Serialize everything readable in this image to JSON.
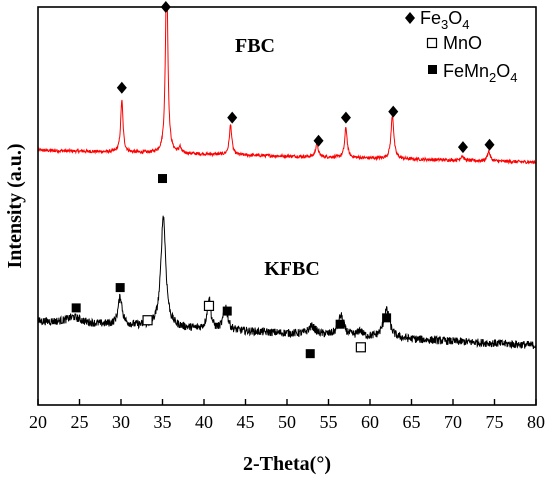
{
  "chart_data": {
    "type": "line",
    "xlabel": "2-Theta(°)",
    "ylabel": "Intensity (a.u.)",
    "xlim": [
      20,
      80
    ],
    "x_ticks": [
      "20",
      "25",
      "30",
      "35",
      "40",
      "45",
      "50",
      "55",
      "60",
      "65",
      "70",
      "75",
      "80"
    ],
    "grid": false,
    "legend_placement": "top-right",
    "legend": [
      {
        "marker": "diamond",
        "label": "Fe",
        "sub1": "3",
        "mid": "O",
        "sub2": "4"
      },
      {
        "marker": "open-square",
        "label": "MnO",
        "sub1": "",
        "mid": "",
        "sub2": ""
      },
      {
        "marker": "filled-square",
        "label": "FeMn",
        "sub1": "2",
        "mid": "O",
        "sub2": "4"
      }
    ],
    "annotations": [
      {
        "text": "FBC"
      },
      {
        "text": "KFBC"
      }
    ],
    "series": [
      {
        "label": "FBC",
        "color": "#ff0000",
        "baseline": 0.64,
        "baseline_drop": 0.03,
        "peaks": [
          {
            "x": 30.1,
            "height": 0.13,
            "width": 0.17
          },
          {
            "x": 35.5,
            "height": 0.47,
            "width": 0.17
          },
          {
            "x": 37.1,
            "height": 0.015,
            "width": 0.15
          },
          {
            "x": 43.2,
            "height": 0.075,
            "width": 0.18
          },
          {
            "x": 53.6,
            "height": 0.035,
            "width": 0.18
          },
          {
            "x": 57.1,
            "height": 0.075,
            "width": 0.18
          },
          {
            "x": 62.7,
            "height": 0.11,
            "width": 0.2
          },
          {
            "x": 71.1,
            "height": 0.012,
            "width": 0.2
          },
          {
            "x": 74.3,
            "height": 0.025,
            "width": 0.2
          }
        ]
      },
      {
        "label": "KFBC",
        "color": "#000000",
        "baseline": 0.21,
        "baseline_drop": 0.06,
        "peaks": [
          {
            "x": 24.3,
            "height": 0.015,
            "width": 1.0
          },
          {
            "x": 29.9,
            "height": 0.07,
            "width": 0.3
          },
          {
            "x": 35.1,
            "height": 0.28,
            "width": 0.35
          },
          {
            "x": 40.6,
            "height": 0.08,
            "width": 0.25
          },
          {
            "x": 42.6,
            "height": 0.06,
            "width": 0.3
          },
          {
            "x": 53.0,
            "height": 0.02,
            "width": 0.5
          },
          {
            "x": 56.5,
            "height": 0.05,
            "width": 0.4
          },
          {
            "x": 58.8,
            "height": 0.015,
            "width": 0.3
          },
          {
            "x": 62.0,
            "height": 0.07,
            "width": 0.45
          }
        ]
      }
    ],
    "markers": [
      {
        "x": 30.1,
        "y": 0.797,
        "type": "diamond"
      },
      {
        "x": 35.4,
        "y": 1.0,
        "type": "diamond"
      },
      {
        "x": 43.4,
        "y": 0.722,
        "type": "diamond"
      },
      {
        "x": 53.8,
        "y": 0.664,
        "type": "diamond"
      },
      {
        "x": 57.1,
        "y": 0.722,
        "type": "diamond"
      },
      {
        "x": 62.8,
        "y": 0.737,
        "type": "diamond"
      },
      {
        "x": 71.2,
        "y": 0.648,
        "type": "diamond"
      },
      {
        "x": 74.4,
        "y": 0.654,
        "type": "diamond"
      },
      {
        "x": 24.6,
        "y": 0.244,
        "type": "filled-square"
      },
      {
        "x": 29.9,
        "y": 0.295,
        "type": "filled-square"
      },
      {
        "x": 35.0,
        "y": 0.569,
        "type": "filled-square"
      },
      {
        "x": 42.8,
        "y": 0.236,
        "type": "filled-square"
      },
      {
        "x": 52.8,
        "y": 0.129,
        "type": "filled-square"
      },
      {
        "x": 56.4,
        "y": 0.203,
        "type": "filled-square"
      },
      {
        "x": 62.0,
        "y": 0.219,
        "type": "filled-square"
      },
      {
        "x": 33.2,
        "y": 0.213,
        "type": "open-square"
      },
      {
        "x": 40.6,
        "y": 0.249,
        "type": "open-square"
      },
      {
        "x": 58.9,
        "y": 0.145,
        "type": "open-square"
      }
    ]
  }
}
